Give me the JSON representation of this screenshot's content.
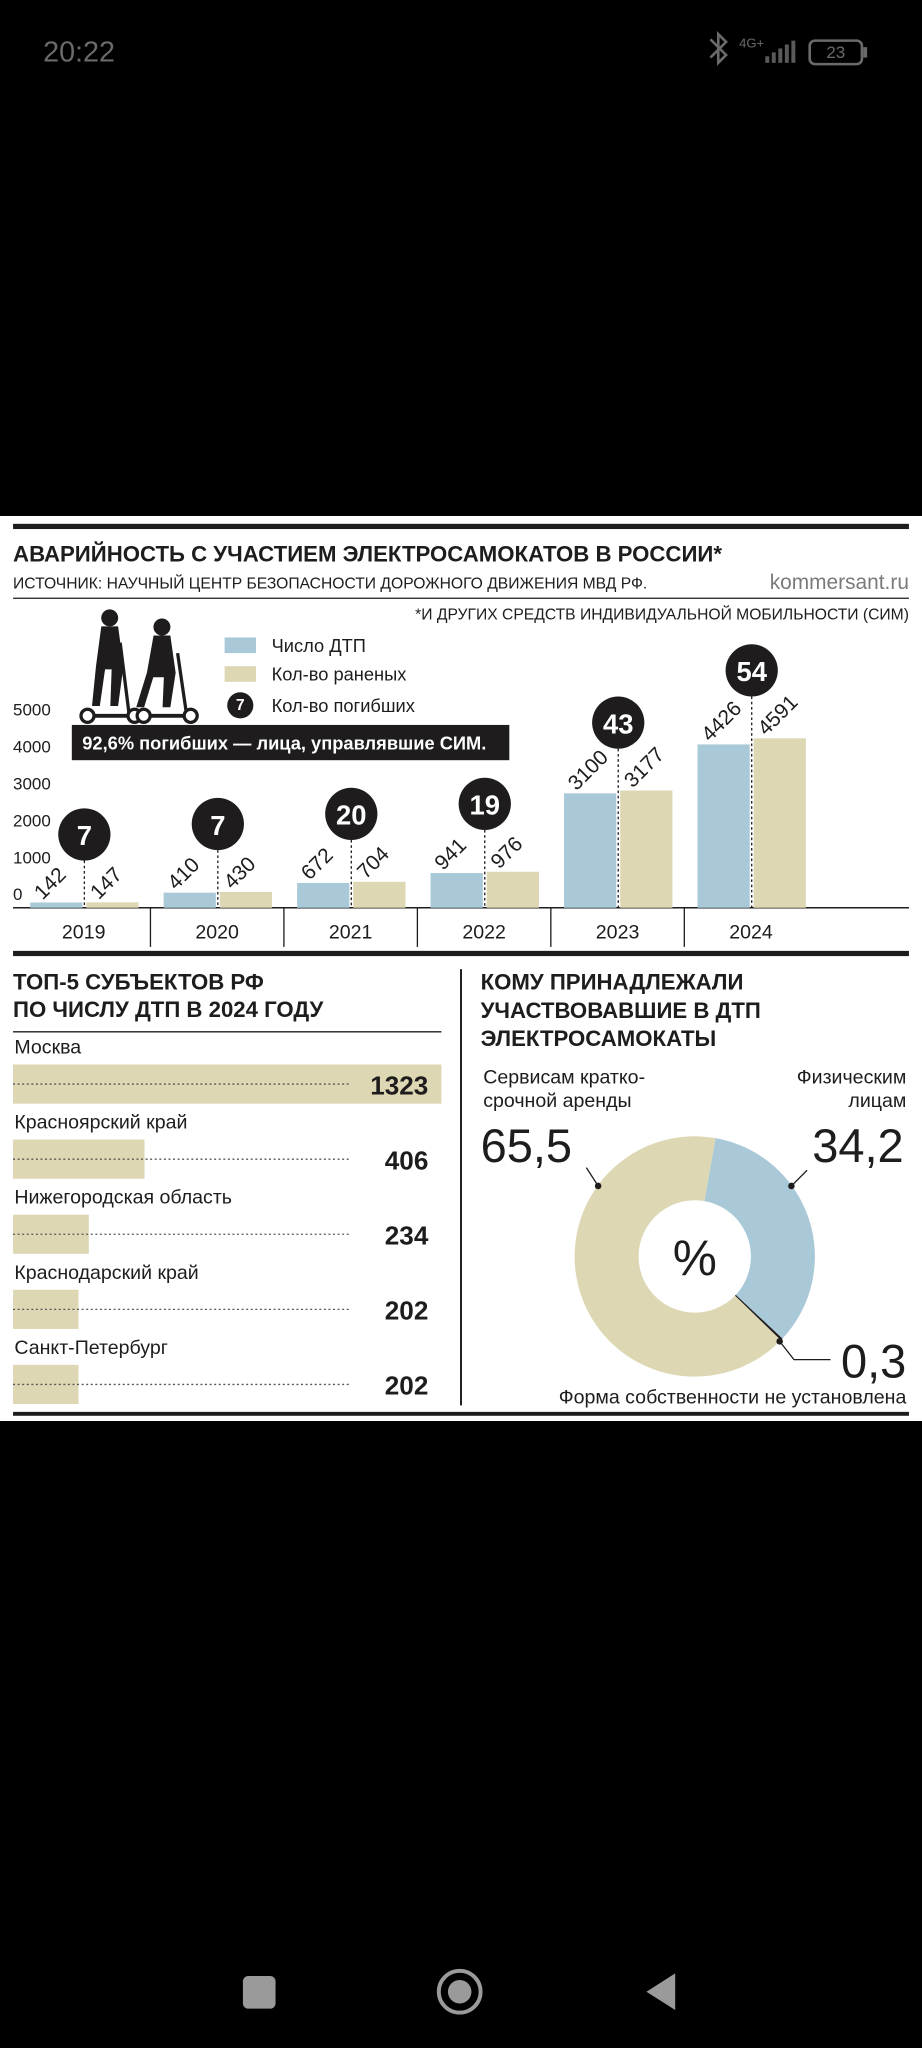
{
  "status_bar": {
    "time": "20:22",
    "network": "4G+",
    "battery": "23"
  },
  "chart_data": [
    {
      "type": "bar",
      "title": "АВАРИЙНОСТЬ С УЧАСТИЕМ ЭЛЕКТРОСАМОКАТОВ В РОССИИ*",
      "source": "ИСТОЧНИК: НАУЧНЫЙ ЦЕНТР БЕЗОПАСНОСТИ ДОРОЖНОГО ДВИЖЕНИЯ МВД РФ.",
      "site": "kommersant.ru",
      "footnote": "*И ДРУГИХ СРЕДСТВ ИНДИВИДУАЛЬНОЙ МОБИЛЬНОСТИ (СИМ)",
      "annotation": "92,6% погибших — лица, управлявшие СИМ.",
      "categories": [
        "2019",
        "2020",
        "2021",
        "2022",
        "2023",
        "2024"
      ],
      "series": [
        {
          "name": "Число ДТП",
          "color": "#a9c8d8",
          "values": [
            142,
            410,
            672,
            941,
            3100,
            4426
          ]
        },
        {
          "name": "Кол-во раненых",
          "color": "#ddd7b3",
          "values": [
            147,
            430,
            704,
            976,
            3177,
            4591
          ]
        },
        {
          "name": "Кол-во погибших",
          "color": "#1e1c1c",
          "values": [
            7,
            7,
            20,
            19,
            43,
            54
          ]
        }
      ],
      "ylim": [
        0,
        5000
      ],
      "yticks": [
        0,
        1000,
        2000,
        3000,
        4000,
        5000
      ]
    },
    {
      "type": "hbar",
      "title": [
        "ТОП-5 СУБЪЕКТОВ РФ",
        "ПО ЧИСЛУ ДТП В 2024 ГОДУ"
      ],
      "categories": [
        "Москва",
        "Красноярский край",
        "Нижегородская область",
        "Краснодарский край",
        "Санкт-Петербург"
      ],
      "values": [
        1323,
        406,
        234,
        202,
        202
      ],
      "color": "#ddd7b3"
    },
    {
      "type": "donut",
      "title": [
        "КОМУ ПРИНАДЛЕЖАЛИ",
        "УЧАСТВОВАВШИЕ В ДТП",
        "ЭЛЕКТРОСАМОКАТЫ"
      ],
      "center_label": "%",
      "categories": [
        [
          "Сервисам кратко-",
          "срочной аренды"
        ],
        [
          "Физическим",
          "лицам"
        ],
        [
          "Форма собственности не установлена"
        ]
      ],
      "values": [
        65.5,
        34.2,
        0.3
      ],
      "value_labels": [
        "65,5",
        "34,2",
        "0,3"
      ],
      "colors": [
        "#ddd7b3",
        "#a9c8d8",
        "#1e1c1c"
      ]
    }
  ]
}
